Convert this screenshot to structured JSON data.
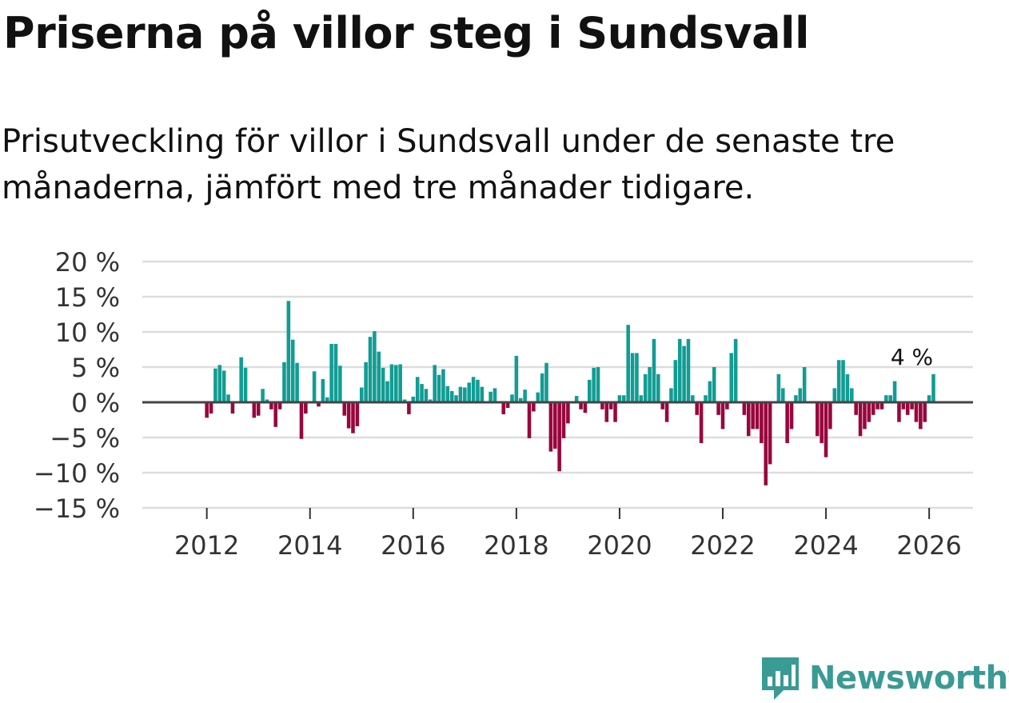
{
  "title": "Priserna på villor steg i Sundsvall",
  "subtitle": "Prisutveckling för villor i Sundsvall under de senaste tre månaderna, jämfört med tre månader tidigare.",
  "brand": {
    "name": "Newsworthy",
    "color": "#3a9a94",
    "icon": "bar-chart-speech-bubble-icon"
  },
  "colors": {
    "positive": "#129c93",
    "negative": "#98063d",
    "grid": "#dddddd",
    "zero_line": "#444444",
    "text": "#111111"
  },
  "chart_data": {
    "type": "bar",
    "title": "Priserna på villor steg i Sundsvall",
    "xlabel": "",
    "ylabel": "",
    "x_start": 2012.0,
    "x_step": 0.08333,
    "xlim": [
      2010.75,
      2026.85
    ],
    "ylim": [
      -15,
      20
    ],
    "y_ticks": [
      20,
      15,
      10,
      5,
      0,
      -5,
      -10,
      -15
    ],
    "y_tick_labels": [
      "20 %",
      "15 %",
      "10 %",
      "5 %",
      "0 %",
      "−5 %",
      "−10 %",
      "−15 %"
    ],
    "x_ticks": [
      2012,
      2014,
      2016,
      2018,
      2020,
      2022,
      2024,
      2026
    ],
    "x_tick_labels": [
      "2012",
      "2014",
      "2016",
      "2018",
      "2020",
      "2022",
      "2024",
      "2026"
    ],
    "values": [
      -2.2,
      -1.6,
      4.8,
      5.3,
      4.5,
      1.1,
      -1.6,
      0,
      6.4,
      4.9,
      0,
      -2.2,
      -1.9,
      1.9,
      0.4,
      -1.0,
      -3.5,
      -1.0,
      5.7,
      14.4,
      8.9,
      5.6,
      -5.2,
      -1.6,
      0,
      4.4,
      -0.6,
      3.3,
      0.7,
      8.3,
      8.3,
      5.2,
      -1.9,
      -3.7,
      -4.4,
      -3.4,
      2.1,
      5.7,
      9.3,
      10.1,
      7.2,
      4.9,
      3.0,
      5.4,
      5.3,
      5.4,
      0.4,
      -1.7,
      0.8,
      3.6,
      2.6,
      1.9,
      0.4,
      5.3,
      3.9,
      4.7,
      2.3,
      1.6,
      1.0,
      2.2,
      2.1,
      2.8,
      3.6,
      3.2,
      2.2,
      0,
      1.5,
      2.0,
      0,
      -1.7,
      -0.8,
      1.1,
      6.6,
      0.6,
      1.8,
      -5.1,
      -1.3,
      1.4,
      4.1,
      5.6,
      -7.0,
      -6.6,
      -9.8,
      -5.1,
      -3.0,
      0,
      0.9,
      -1.0,
      -1.5,
      3.2,
      4.9,
      5.0,
      -1.0,
      -2.8,
      -1.0,
      -2.8,
      1.0,
      1.0,
      11.0,
      7.0,
      7.0,
      1.0,
      4.0,
      5.0,
      9.0,
      4.0,
      -1.0,
      -2.8,
      2.0,
      6.0,
      9.0,
      8.0,
      9.0,
      1.0,
      -1.8,
      -5.8,
      1.0,
      3.0,
      5.0,
      -1.8,
      -3.8,
      -1.0,
      7.0,
      9.0,
      0,
      -1.8,
      -4.8,
      -3.8,
      -3.8,
      -5.8,
      -11.8,
      -8.8,
      0,
      4.0,
      2.0,
      -5.8,
      -3.8,
      1.0,
      2.0,
      5.0,
      0,
      0,
      -4.8,
      -5.8,
      -7.8,
      -3.8,
      2.0,
      6.0,
      6.0,
      4.0,
      2.0,
      -1.8,
      -4.8,
      -3.8,
      -2.8,
      -1.8,
      -1.0,
      -1.0,
      1.0,
      1.0,
      3.0,
      -2.8,
      -1.0,
      -1.8,
      -1.0,
      -2.8,
      -3.8,
      -2.8,
      1.0,
      4.0
    ],
    "annotation": {
      "text": "4 %",
      "index": "last"
    }
  }
}
